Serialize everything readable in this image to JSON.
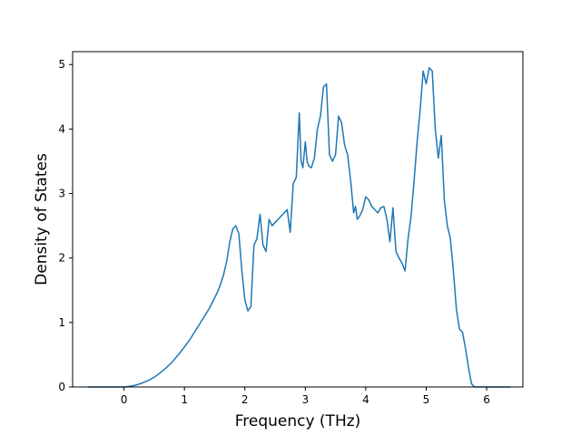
{
  "chart_data": {
    "type": "line",
    "title": "",
    "xlabel": "Frequency (THz)",
    "ylabel": "Density of States",
    "xlim": [
      -0.85,
      6.6
    ],
    "ylim": [
      0,
      5.2
    ],
    "xticks": [
      0,
      1,
      2,
      3,
      4,
      5,
      6
    ],
    "yticks": [
      0,
      1,
      2,
      3,
      4,
      5
    ],
    "grid": false,
    "legend": "none",
    "series": [
      {
        "color": "#1f77b4",
        "x": [
          -0.6,
          -0.4,
          -0.2,
          0.0,
          0.1,
          0.2,
          0.3,
          0.4,
          0.5,
          0.6,
          0.7,
          0.8,
          0.9,
          1.0,
          1.1,
          1.2,
          1.3,
          1.4,
          1.5,
          1.55,
          1.6,
          1.65,
          1.7,
          1.75,
          1.8,
          1.85,
          1.9,
          1.95,
          2.0,
          2.05,
          2.1,
          2.15,
          2.2,
          2.25,
          2.3,
          2.35,
          2.4,
          2.45,
          2.5,
          2.55,
          2.6,
          2.65,
          2.7,
          2.75,
          2.8,
          2.85,
          2.9,
          2.93,
          2.96,
          3.0,
          3.03,
          3.06,
          3.1,
          3.15,
          3.2,
          3.25,
          3.3,
          3.35,
          3.4,
          3.45,
          3.5,
          3.55,
          3.6,
          3.65,
          3.7,
          3.75,
          3.8,
          3.83,
          3.86,
          3.9,
          3.95,
          4.0,
          4.05,
          4.1,
          4.15,
          4.2,
          4.25,
          4.3,
          4.35,
          4.4,
          4.45,
          4.5,
          4.55,
          4.6,
          4.65,
          4.7,
          4.75,
          4.8,
          4.85,
          4.9,
          4.95,
          5.0,
          5.05,
          5.1,
          5.15,
          5.2,
          5.25,
          5.3,
          5.35,
          5.4,
          5.45,
          5.5,
          5.55,
          5.6,
          5.65,
          5.7,
          5.75,
          5.8,
          5.85,
          5.9,
          6.0,
          6.2,
          6.4
        ],
        "y": [
          0.0,
          0.0,
          0.0,
          0.0,
          0.01,
          0.03,
          0.06,
          0.1,
          0.15,
          0.22,
          0.3,
          0.39,
          0.5,
          0.62,
          0.75,
          0.9,
          1.05,
          1.2,
          1.38,
          1.48,
          1.6,
          1.75,
          1.95,
          2.25,
          2.45,
          2.5,
          2.38,
          1.8,
          1.35,
          1.18,
          1.25,
          2.2,
          2.3,
          2.68,
          2.2,
          2.1,
          2.6,
          2.5,
          2.55,
          2.6,
          2.65,
          2.7,
          2.75,
          2.4,
          3.15,
          3.25,
          4.25,
          3.5,
          3.4,
          3.8,
          3.5,
          3.42,
          3.4,
          3.55,
          4.0,
          4.2,
          4.65,
          4.7,
          3.6,
          3.5,
          3.6,
          4.2,
          4.1,
          3.75,
          3.6,
          3.2,
          2.7,
          2.8,
          2.6,
          2.65,
          2.75,
          2.95,
          2.9,
          2.8,
          2.75,
          2.7,
          2.78,
          2.8,
          2.6,
          2.25,
          2.78,
          2.1,
          2.0,
          1.92,
          1.8,
          2.3,
          2.65,
          3.2,
          3.8,
          4.3,
          4.9,
          4.7,
          4.95,
          4.9,
          4.0,
          3.55,
          3.9,
          2.9,
          2.5,
          2.3,
          1.8,
          1.2,
          0.9,
          0.85,
          0.6,
          0.3,
          0.05,
          0.0,
          0.0,
          0.0,
          0.0,
          0.0,
          0.0
        ]
      }
    ]
  }
}
